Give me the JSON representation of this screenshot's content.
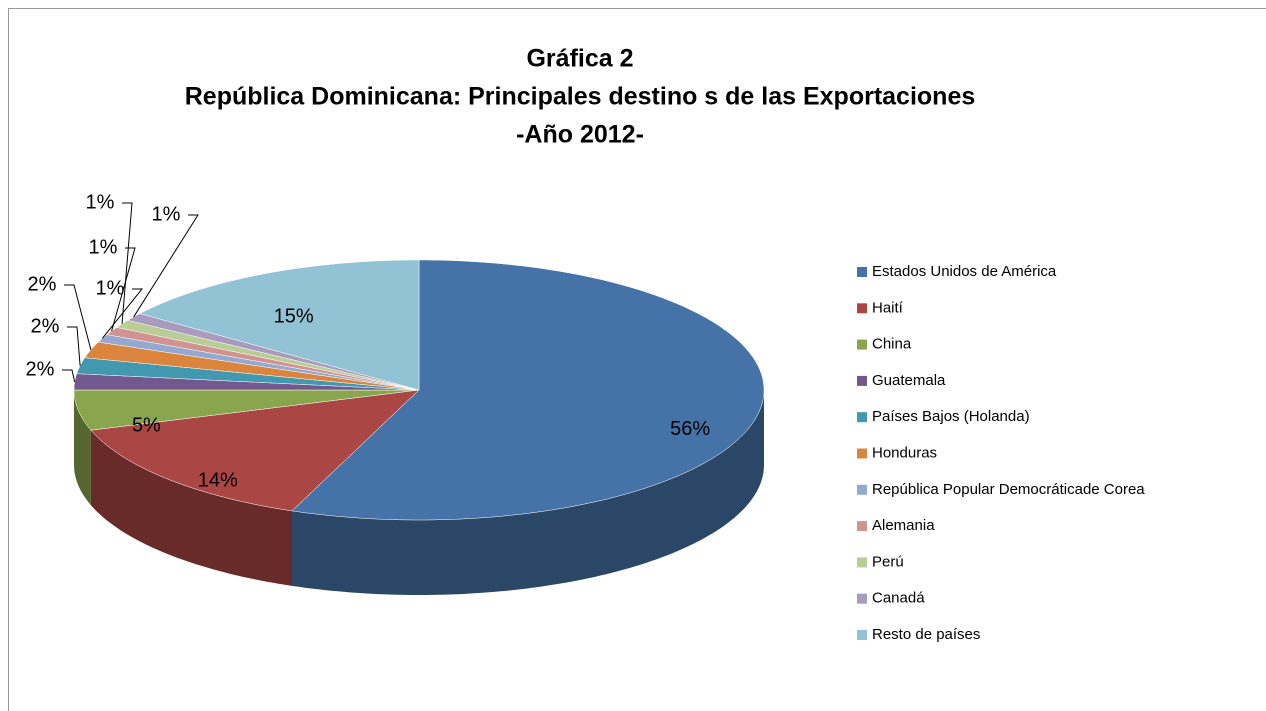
{
  "chart_data": {
    "type": "pie3d",
    "title": [
      "Gráfica 2",
      "República Dominicana: Principales destino s de las Exportaciones",
      "-Año 2012-"
    ],
    "categories": [
      "Estados Unidos de América",
      "Haití",
      "China",
      "Guatemala",
      "Países Bajos (Holanda)",
      "Honduras",
      "República Popular Democráticade Corea",
      "Alemania",
      "Perú",
      "Canadá",
      "Resto de países"
    ],
    "values": [
      56,
      14,
      5,
      2,
      2,
      2,
      1,
      1,
      1,
      1,
      15
    ],
    "value_labels": [
      "56%",
      "14%",
      "5%",
      "2%",
      "2%",
      "2%",
      "1%",
      "1%",
      "1%",
      "1%",
      "15%"
    ],
    "colors": [
      "#4572A7",
      "#AA4643",
      "#89A54E",
      "#71588F",
      "#4198AF",
      "#DB843D",
      "#93A9CF",
      "#D19392",
      "#B9CD96",
      "#A99BBD",
      "#92C3D4"
    ],
    "legend": "right"
  }
}
